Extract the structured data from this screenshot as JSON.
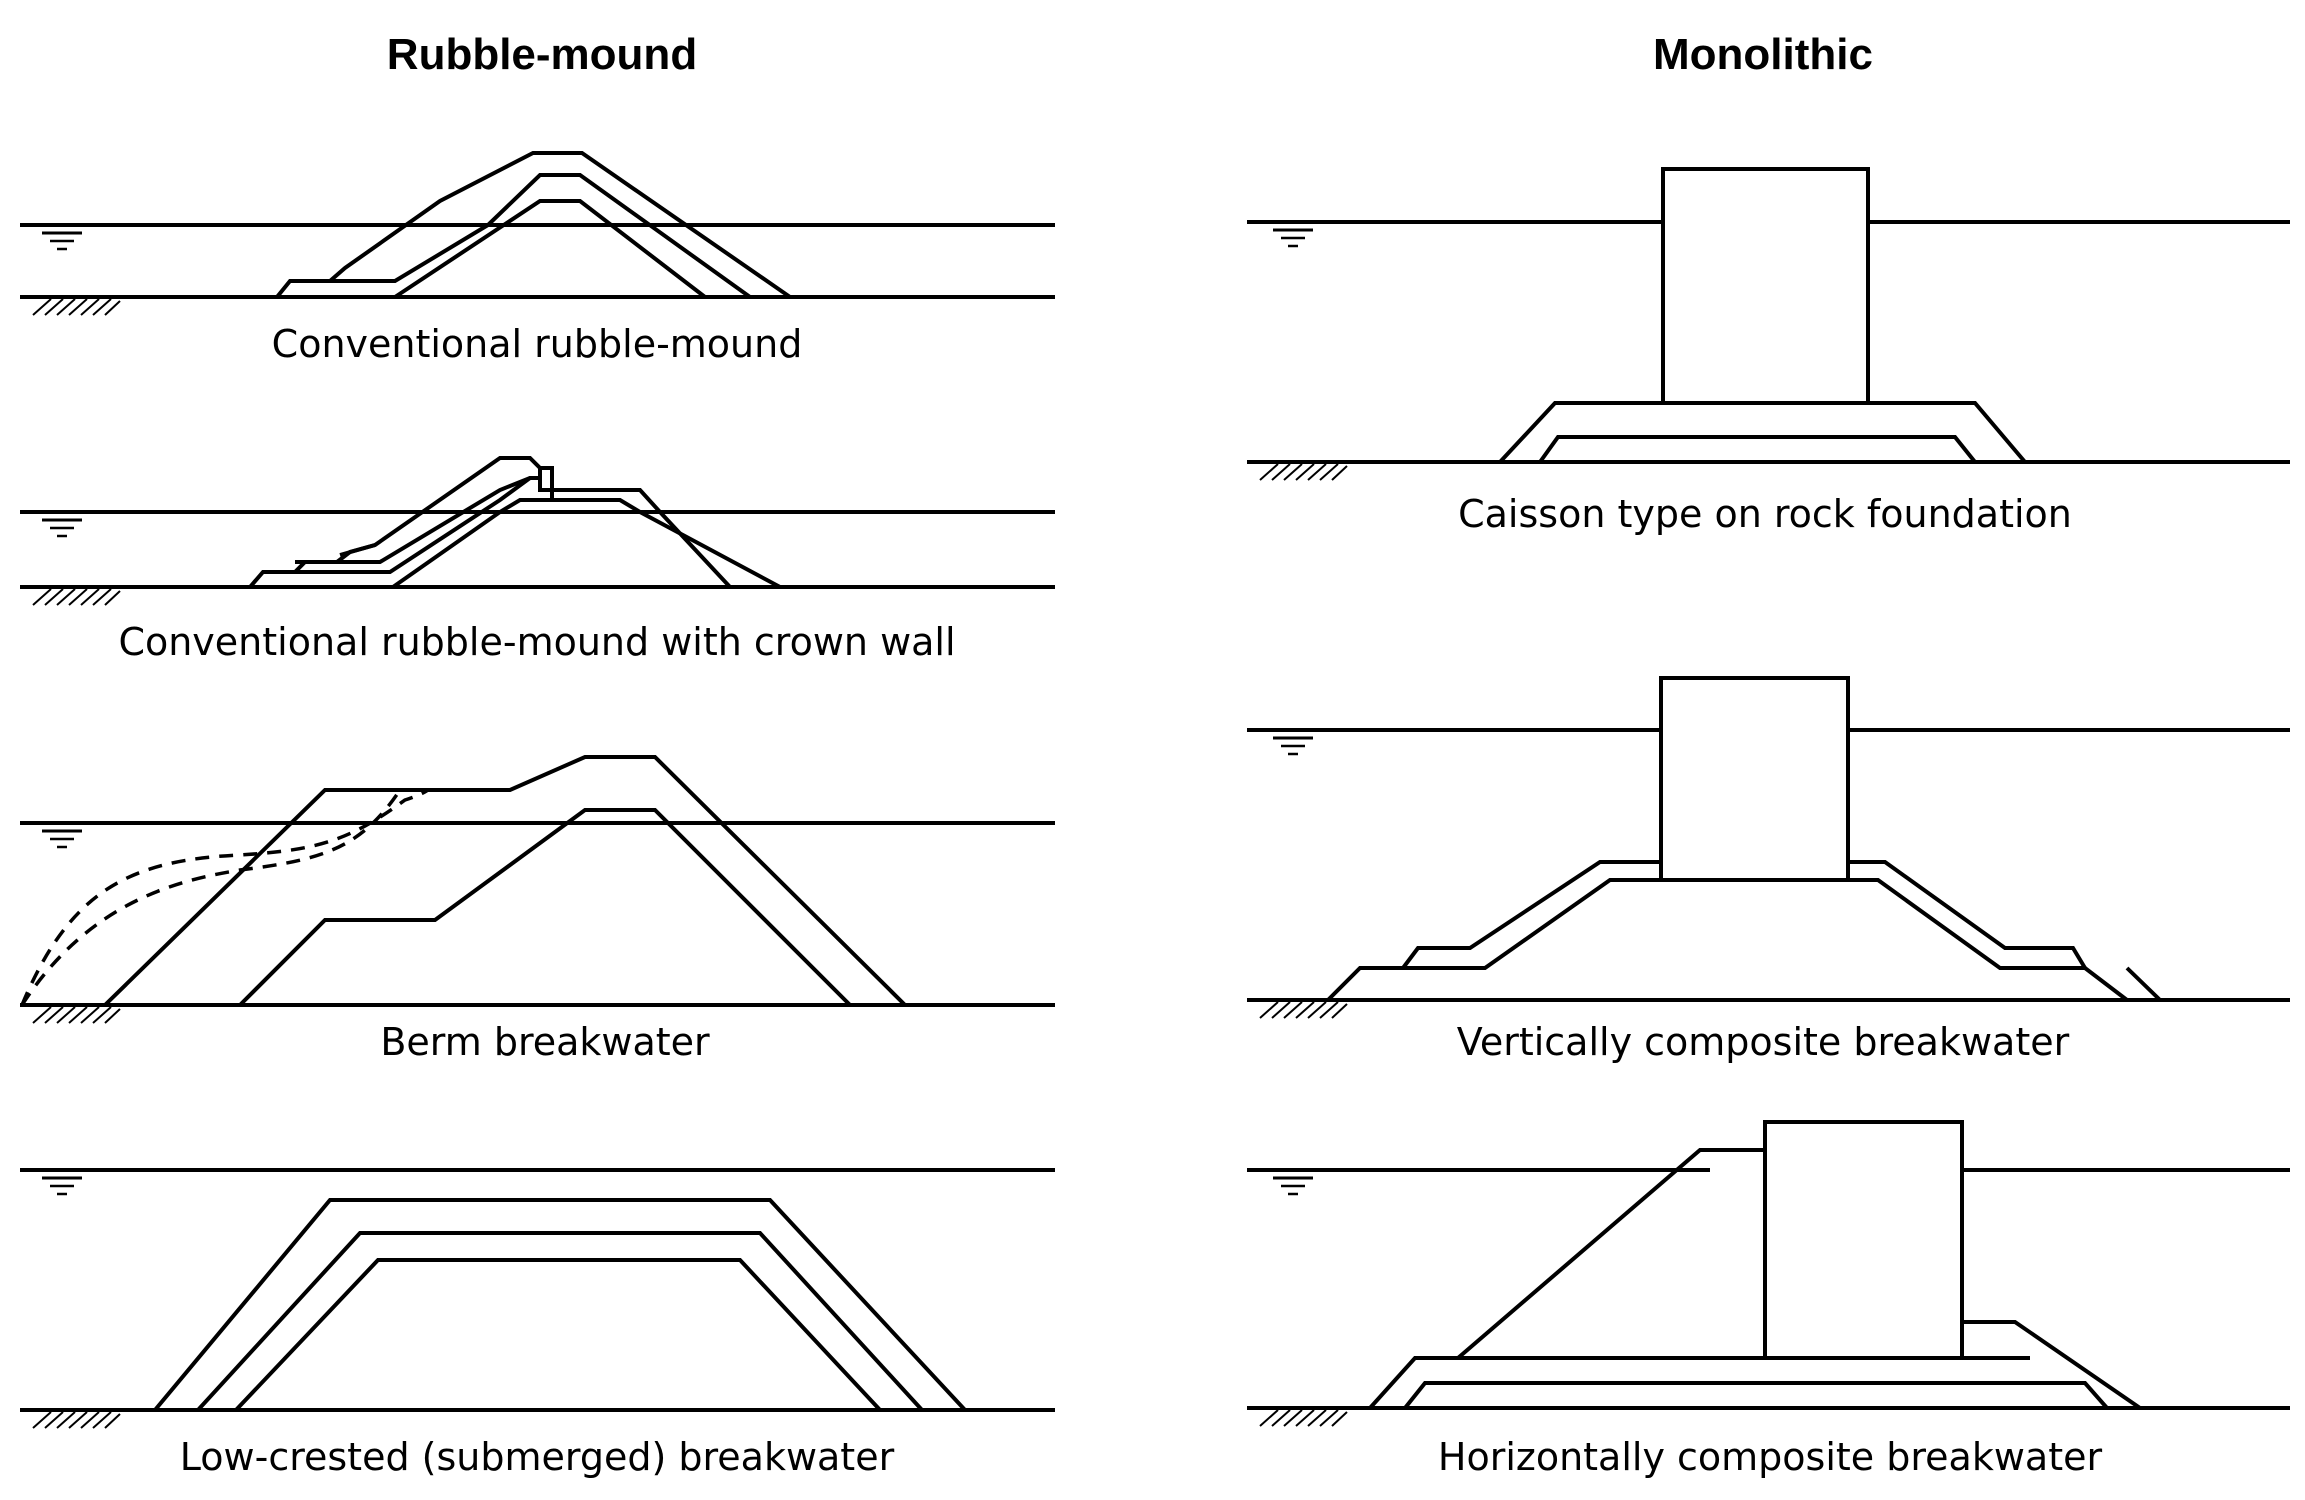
{
  "headings": {
    "left": "Rubble-mound",
    "right": "Monolithic"
  },
  "captions": {
    "conventional": "Conventional rubble-mound",
    "crown_wall": "Conventional rubble-mound with crown wall",
    "berm": "Berm breakwater",
    "low_crested": "Low-crested (submerged) breakwater",
    "caisson": "Caisson type on rock foundation",
    "vertical": "Vertically composite breakwater",
    "horizontal": "Horizontally composite breakwater"
  }
}
